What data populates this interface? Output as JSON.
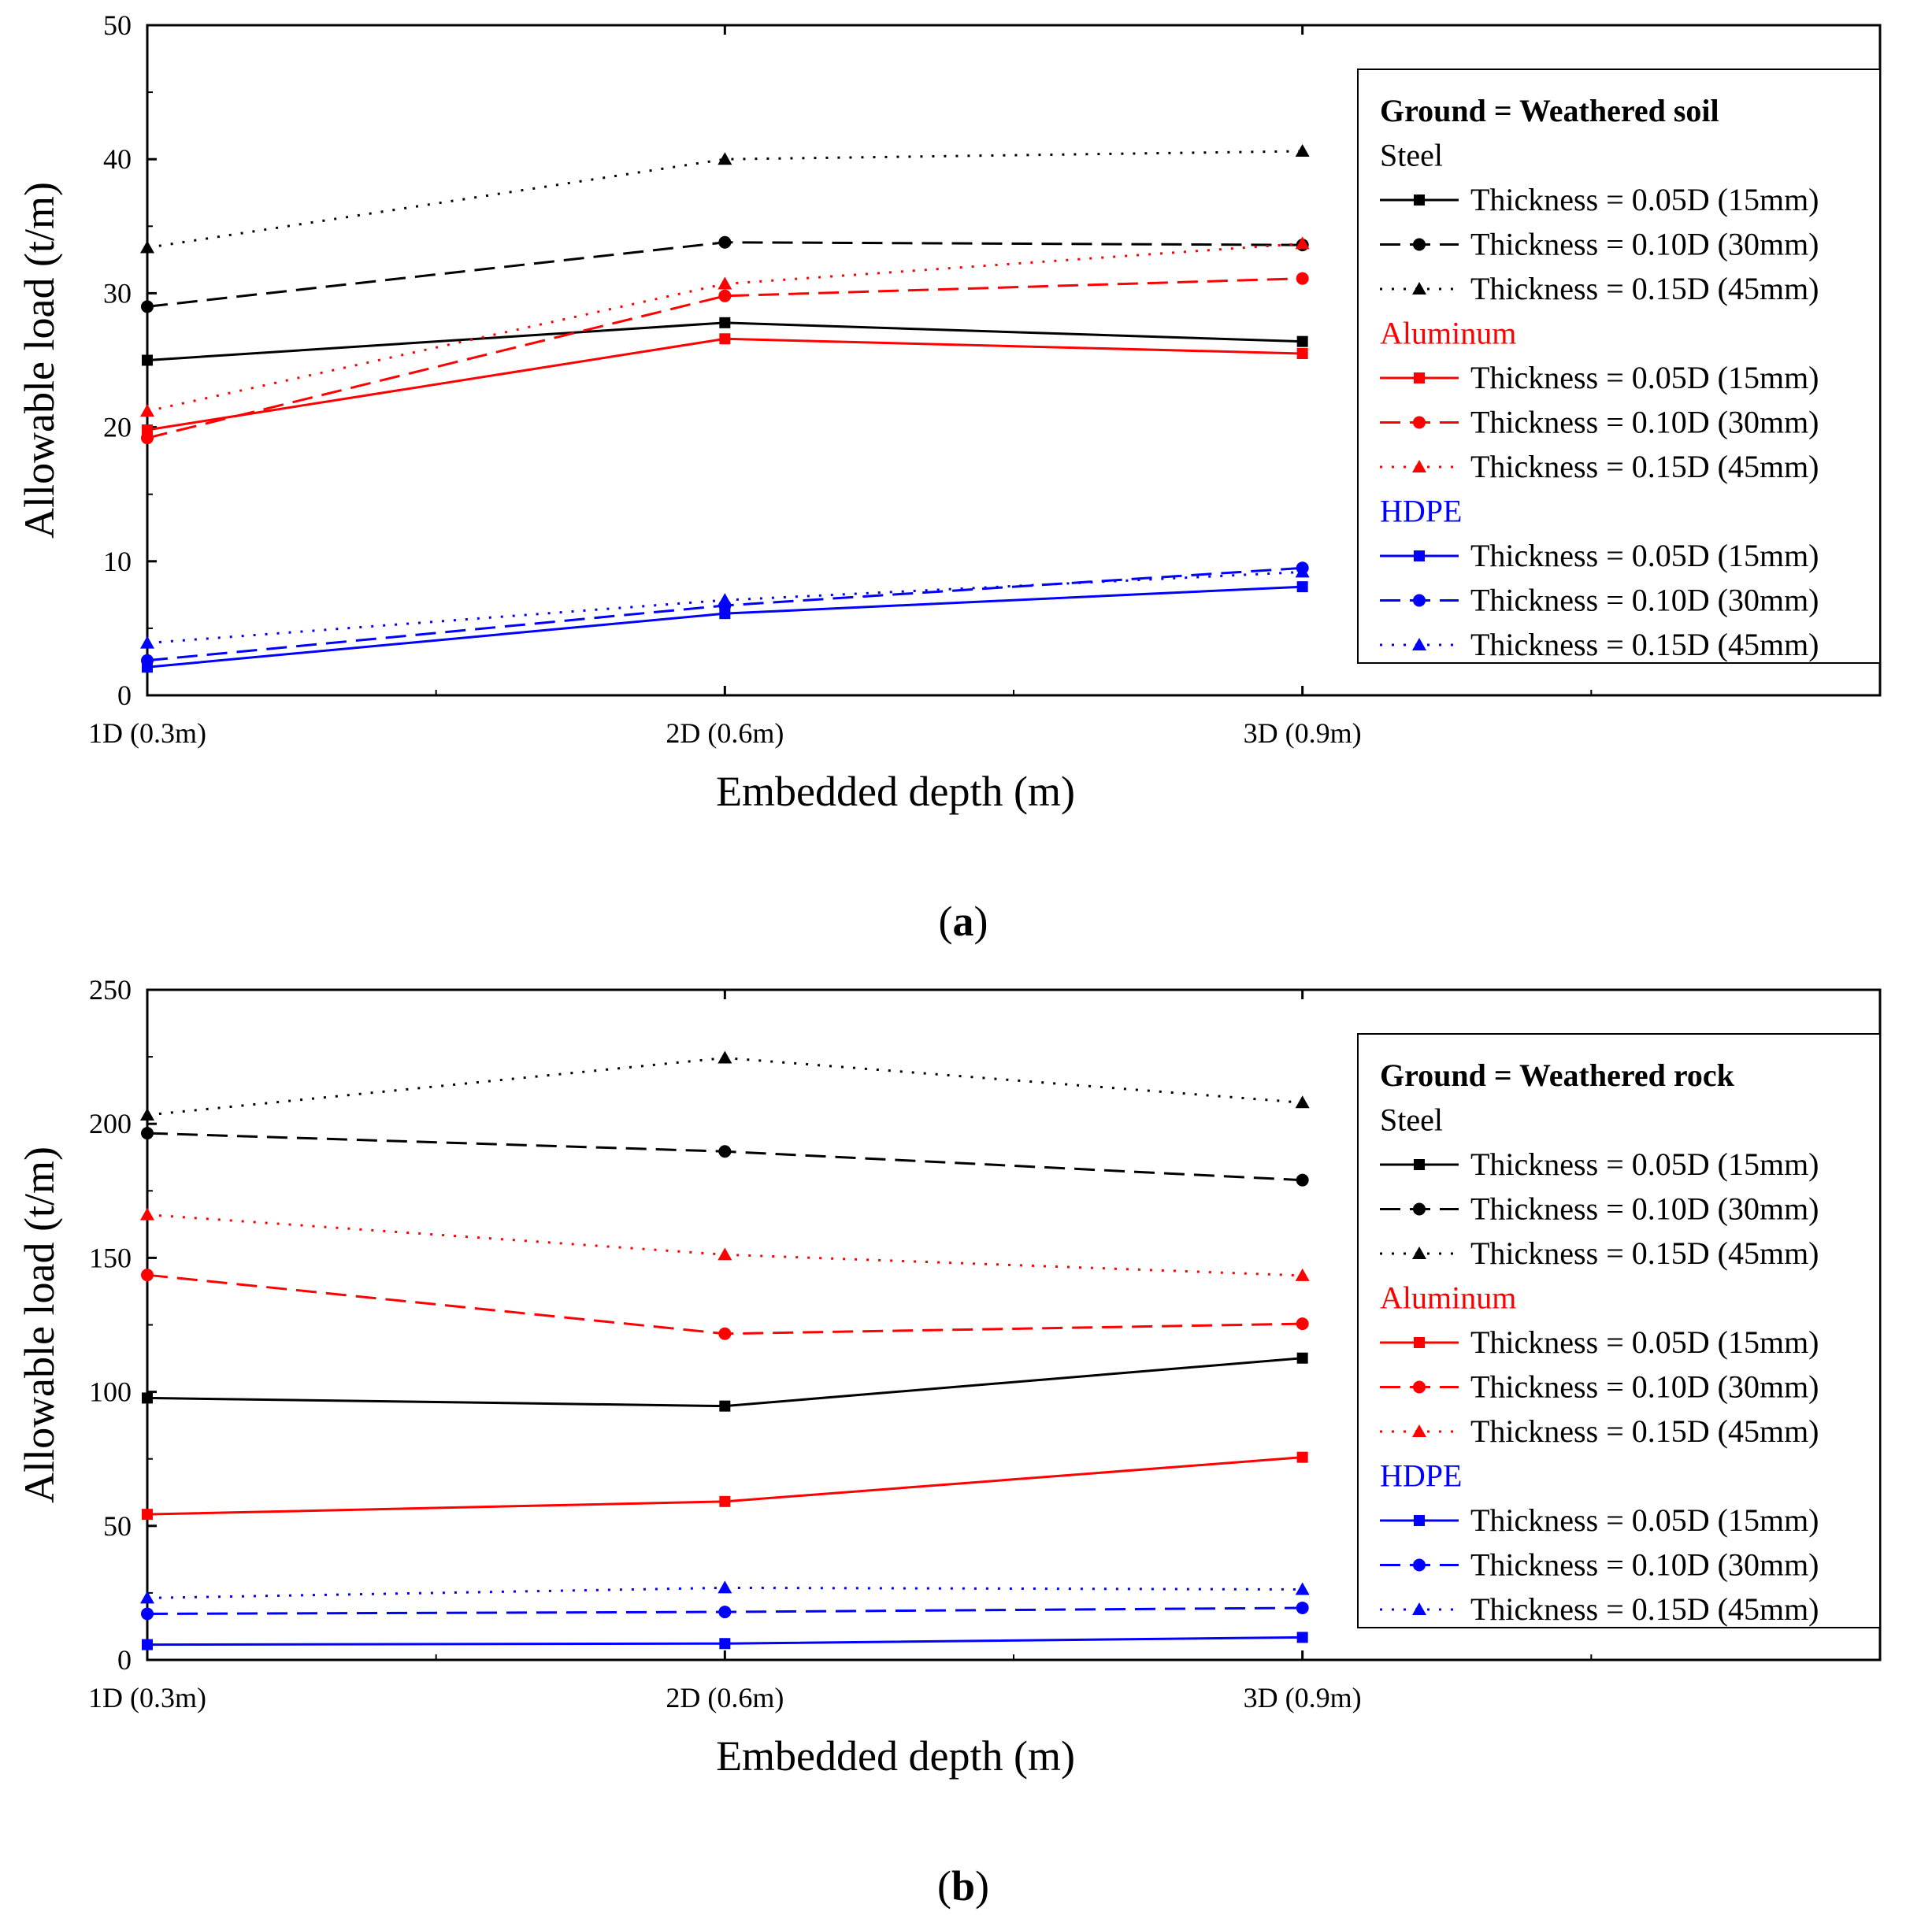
{
  "chart_data": [
    {
      "type": "line",
      "panel_label": "a",
      "xlabel": "Embedded depth (m)",
      "ylabel": "Allowable load (t/m)",
      "ylim": [
        0,
        50
      ],
      "yticks": [
        0,
        10,
        20,
        30,
        40,
        50
      ],
      "xlim": [
        0.5,
        3.5
      ],
      "categories": [
        "1D (0.3m)",
        "2D (0.6m)",
        "3D (0.9m)"
      ],
      "x": [
        0.5,
        1.5,
        2.5
      ],
      "legend": {
        "title": "Ground = Weathered soil",
        "location": "right",
        "groups": [
          {
            "label": "Steel",
            "color": "#000000"
          },
          {
            "label": "Aluminum",
            "color": "#ff0000"
          },
          {
            "label": "HDPE",
            "color": "#0000ff"
          }
        ]
      },
      "series": [
        {
          "group": "Steel",
          "name": "Thickness = 0.05D (15mm)",
          "color": "#000000",
          "dash": "solid",
          "marker": "square",
          "values": [
            25.0,
            27.8,
            26.4
          ]
        },
        {
          "group": "Steel",
          "name": "Thickness = 0.10D (30mm)",
          "color": "#000000",
          "dash": "dash",
          "marker": "circle",
          "values": [
            29.0,
            33.8,
            33.6
          ]
        },
        {
          "group": "Steel",
          "name": "Thickness = 0.15D (45mm)",
          "color": "#000000",
          "dash": "dot",
          "marker": "triangle",
          "values": [
            33.4,
            40.0,
            40.6
          ]
        },
        {
          "group": "Aluminum",
          "name": "Thickness = 0.05D (15mm)",
          "color": "#ff0000",
          "dash": "solid",
          "marker": "square",
          "values": [
            19.8,
            26.6,
            25.5
          ]
        },
        {
          "group": "Aluminum",
          "name": "Thickness = 0.10D (30mm)",
          "color": "#ff0000",
          "dash": "dash",
          "marker": "circle",
          "values": [
            19.2,
            29.8,
            31.1
          ]
        },
        {
          "group": "Aluminum",
          "name": "Thickness = 0.15D (45mm)",
          "color": "#ff0000",
          "dash": "dot",
          "marker": "triangle",
          "values": [
            21.2,
            30.7,
            33.7
          ]
        },
        {
          "group": "HDPE",
          "name": "Thickness = 0.05D (15mm)",
          "color": "#0000ff",
          "dash": "solid",
          "marker": "square",
          "values": [
            2.1,
            6.1,
            8.1
          ]
        },
        {
          "group": "HDPE",
          "name": "Thickness = 0.10D (30mm)",
          "color": "#0000ff",
          "dash": "dash",
          "marker": "circle",
          "values": [
            2.6,
            6.7,
            9.5
          ]
        },
        {
          "group": "HDPE",
          "name": "Thickness = 0.15D (45mm)",
          "color": "#0000ff",
          "dash": "dot",
          "marker": "triangle",
          "values": [
            3.9,
            7.1,
            9.2
          ]
        }
      ]
    },
    {
      "type": "line",
      "panel_label": "b",
      "xlabel": "Embedded depth (m)",
      "ylabel": "Allowable load (t/m)",
      "ylim": [
        0,
        250
      ],
      "yticks": [
        0,
        50,
        100,
        150,
        200,
        250
      ],
      "xlim": [
        0.5,
        3.5
      ],
      "categories": [
        "1D (0.3m)",
        "2D (0.6m)",
        "3D (0.9m)"
      ],
      "x": [
        0.5,
        1.5,
        2.5
      ],
      "legend": {
        "title": "Ground = Weathered rock",
        "location": "right",
        "groups": [
          {
            "label": "Steel",
            "color": "#000000"
          },
          {
            "label": "Aluminum",
            "color": "#ff0000"
          },
          {
            "label": "HDPE",
            "color": "#0000ff"
          }
        ]
      },
      "series": [
        {
          "group": "Steel",
          "name": "Thickness = 0.05D (15mm)",
          "color": "#000000",
          "dash": "solid",
          "marker": "square",
          "values": [
            97.7,
            94.7,
            112.6
          ]
        },
        {
          "group": "Steel",
          "name": "Thickness = 0.10D (30mm)",
          "color": "#000000",
          "dash": "dash",
          "marker": "circle",
          "values": [
            196.5,
            189.7,
            179.0
          ]
        },
        {
          "group": "Steel",
          "name": "Thickness = 0.15D (45mm)",
          "color": "#000000",
          "dash": "dot",
          "marker": "triangle",
          "values": [
            203.3,
            224.6,
            207.9
          ]
        },
        {
          "group": "Aluminum",
          "name": "Thickness = 0.05D (15mm)",
          "color": "#ff0000",
          "dash": "solid",
          "marker": "square",
          "values": [
            54.3,
            59.1,
            75.6
          ]
        },
        {
          "group": "Aluminum",
          "name": "Thickness = 0.10D (30mm)",
          "color": "#ff0000",
          "dash": "dash",
          "marker": "circle",
          "values": [
            143.6,
            121.7,
            125.4
          ]
        },
        {
          "group": "Aluminum",
          "name": "Thickness = 0.15D (45mm)",
          "color": "#ff0000",
          "dash": "dot",
          "marker": "triangle",
          "values": [
            166.1,
            151.2,
            143.4
          ]
        },
        {
          "group": "HDPE",
          "name": "Thickness = 0.05D (15mm)",
          "color": "#0000ff",
          "dash": "solid",
          "marker": "square",
          "values": [
            5.7,
            6.1,
            8.4
          ]
        },
        {
          "group": "HDPE",
          "name": "Thickness = 0.10D (30mm)",
          "color": "#0000ff",
          "dash": "dash",
          "marker": "circle",
          "values": [
            17.2,
            17.9,
            19.4
          ]
        },
        {
          "group": "HDPE",
          "name": "Thickness = 0.15D (45mm)",
          "color": "#0000ff",
          "dash": "dot",
          "marker": "triangle",
          "values": [
            23.1,
            26.9,
            26.3
          ]
        }
      ]
    }
  ]
}
